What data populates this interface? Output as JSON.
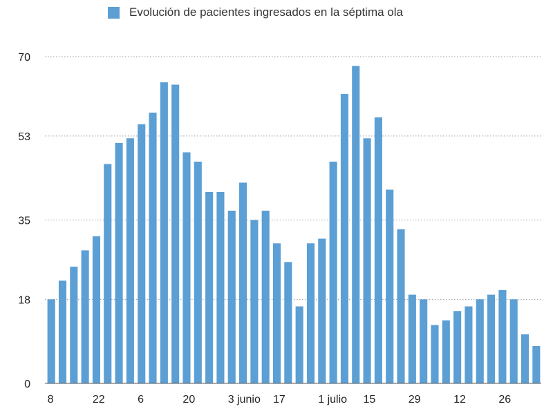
{
  "chart_data": {
    "type": "bar",
    "legend": "Evolución de pacientes ingresados en la séptima ola",
    "legend_position": "top",
    "grid": true,
    "color": "#5B9FD4",
    "ylim": [
      0,
      70
    ],
    "yticks": [
      0,
      18,
      35,
      53,
      70
    ],
    "xtick_labels": [
      {
        "index": 0,
        "label": "8"
      },
      {
        "index": 4,
        "label": "22"
      },
      {
        "index": 8,
        "label": "6"
      },
      {
        "index": 12,
        "label": "20"
      },
      {
        "index": 16,
        "label": "3 junio"
      },
      {
        "index": 20,
        "label": "17"
      },
      {
        "index": 24,
        "label": "1 julio"
      },
      {
        "index": 28,
        "label": "15"
      },
      {
        "index": 32,
        "label": "29"
      },
      {
        "index": 36,
        "label": "12"
      },
      {
        "index": 40,
        "label": "26"
      }
    ],
    "values": [
      18,
      22,
      25,
      28.5,
      31.5,
      47,
      51.5,
      52.5,
      55.5,
      58,
      64.5,
      64,
      49.5,
      47.5,
      41,
      41,
      37,
      43,
      35,
      37,
      30,
      26,
      16.5,
      30,
      31,
      47.5,
      62,
      68,
      52.5,
      57,
      41.5,
      33,
      19,
      18,
      12.5,
      13.5,
      15.5,
      16.5,
      18,
      19,
      20,
      18,
      10.5,
      8
    ]
  }
}
